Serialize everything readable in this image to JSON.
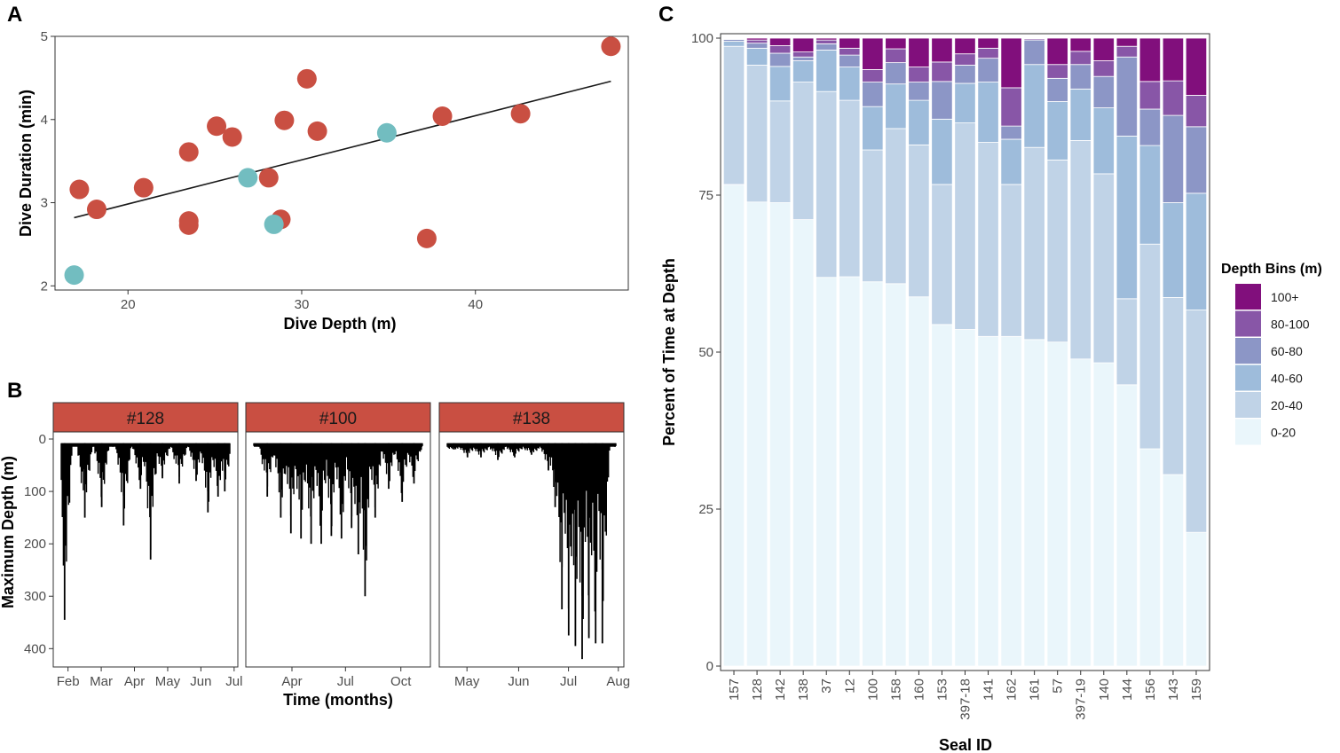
{
  "chart_data": [
    {
      "panel": "A",
      "type": "scatter",
      "xlabel": "Dive Depth (m)",
      "ylabel": "Dive Duration (min)",
      "xlim": [
        15.8,
        48.8
      ],
      "ylim": [
        1.95,
        5.0
      ],
      "xticks": [
        20,
        30,
        40
      ],
      "yticks": [
        2,
        3,
        4,
        5
      ],
      "colors": {
        "group1": "#c94f42",
        "group2": "#72bdc0",
        "line": "#1a1a1a"
      },
      "series": [
        {
          "name": "group1",
          "points": [
            [
              17.2,
              3.16
            ],
            [
              18.2,
              2.92
            ],
            [
              20.9,
              3.18
            ],
            [
              23.5,
              3.61
            ],
            [
              23.5,
              2.73
            ],
            [
              23.5,
              2.78
            ],
            [
              25.1,
              3.92
            ],
            [
              26.0,
              3.79
            ],
            [
              28.1,
              3.3
            ],
            [
              28.8,
              2.8
            ],
            [
              29.0,
              3.99
            ],
            [
              30.3,
              4.49
            ],
            [
              30.9,
              3.86
            ],
            [
              37.2,
              2.57
            ],
            [
              38.1,
              4.04
            ],
            [
              42.6,
              4.07
            ],
            [
              47.8,
              4.88
            ]
          ]
        },
        {
          "name": "group2",
          "points": [
            [
              16.9,
              2.13
            ],
            [
              26.9,
              3.3
            ],
            [
              28.4,
              2.74
            ],
            [
              34.9,
              3.84
            ]
          ]
        }
      ],
      "fit_line": {
        "x": [
          16.9,
          47.8
        ],
        "y": [
          2.82,
          4.46
        ]
      }
    },
    {
      "panel": "B",
      "type": "line",
      "xlabel": "Time (months)",
      "ylabel": "Maximum Depth (m)",
      "ylim": [
        0,
        435
      ],
      "yticks": [
        0,
        100,
        200,
        300,
        400
      ],
      "facets": [
        {
          "label": "#128",
          "tick_labels": [
            "Feb",
            "Mar",
            "Apr",
            "May",
            "Jun",
            "Jul"
          ],
          "spikes": [
            [
              0.02,
              345
            ],
            [
              0.14,
              150
            ],
            [
              0.24,
              130
            ],
            [
              0.37,
              165
            ],
            [
              0.47,
              95
            ],
            [
              0.53,
              230
            ],
            [
              0.6,
              75
            ],
            [
              0.7,
              85
            ],
            [
              0.8,
              80
            ],
            [
              0.87,
              140
            ],
            [
              0.93,
              110
            ],
            [
              0.97,
              100
            ]
          ]
        },
        {
          "label": "#100",
          "tick_labels": [
            "Apr",
            "Jul",
            "Oct"
          ],
          "spikes": [
            [
              0.08,
              110
            ],
            [
              0.16,
              150
            ],
            [
              0.22,
              180
            ],
            [
              0.28,
              190
            ],
            [
              0.34,
              200
            ],
            [
              0.4,
              200
            ],
            [
              0.46,
              185
            ],
            [
              0.52,
              190
            ],
            [
              0.58,
              170
            ],
            [
              0.62,
              220
            ],
            [
              0.66,
              300
            ],
            [
              0.72,
              150
            ],
            [
              0.8,
              95
            ],
            [
              0.88,
              120
            ],
            [
              0.95,
              85
            ]
          ]
        },
        {
          "label": "#138",
          "tick_labels": [
            "May",
            "Jun",
            "Jul",
            "Aug"
          ],
          "spikes": [
            [
              0.04,
              20
            ],
            [
              0.12,
              35
            ],
            [
              0.2,
              35
            ],
            [
              0.3,
              40
            ],
            [
              0.4,
              35
            ],
            [
              0.5,
              30
            ],
            [
              0.6,
              60
            ],
            [
              0.64,
              130
            ],
            [
              0.68,
              325
            ],
            [
              0.72,
              375
            ],
            [
              0.76,
              395
            ],
            [
              0.8,
              420
            ],
            [
              0.84,
              380
            ],
            [
              0.88,
              390
            ],
            [
              0.92,
              390
            ]
          ]
        }
      ]
    },
    {
      "panel": "C",
      "type": "bar",
      "stacked": true,
      "xlabel": "Seal ID",
      "ylabel": "Percent of Time at Depth",
      "ylim": [
        0,
        100
      ],
      "yticks": [
        0,
        25,
        50,
        75,
        100
      ],
      "legend_title": "Depth Bins (m)",
      "bins": [
        "0-20",
        "20-40",
        "40-60",
        "60-80",
        "80-100",
        "100+"
      ],
      "legend_order": [
        "100+",
        "80-100",
        "60-80",
        "40-60",
        "20-40",
        "0-20"
      ],
      "colors": {
        "0-20": "#eaf6fb",
        "20-40": "#c0d3e7",
        "40-60": "#9ebcdb",
        "60-80": "#8c96c6",
        "80-100": "#8856a7",
        "100+": "#810f7c"
      },
      "categories": [
        "157",
        "128",
        "142",
        "138",
        "37",
        "12",
        "100",
        "158",
        "160",
        "153",
        "397-18",
        "141",
        "162",
        "161",
        "57",
        "397-19",
        "140",
        "144",
        "156",
        "143",
        "159"
      ],
      "series": [
        {
          "name": "0-20",
          "values": [
            76.7,
            73.9,
            73.8,
            71.1,
            61.9,
            62.0,
            61.2,
            60.9,
            58.8,
            54.4,
            53.6,
            52.5,
            52.5,
            52.0,
            51.6,
            48.9,
            48.3,
            44.8,
            34.6,
            30.5,
            21.3
          ]
        },
        {
          "name": "20-40",
          "values": [
            22.0,
            21.8,
            16.2,
            21.9,
            29.6,
            28.1,
            21.0,
            24.7,
            24.2,
            22.3,
            32.9,
            30.9,
            24.2,
            30.6,
            29.0,
            34.8,
            30.1,
            13.7,
            32.6,
            28.2,
            35.4
          ]
        },
        {
          "name": "40-60",
          "values": [
            0.8,
            2.7,
            5.5,
            3.4,
            6.6,
            5.3,
            6.9,
            7.1,
            7.1,
            10.4,
            6.3,
            9.6,
            7.2,
            13.2,
            9.3,
            8.2,
            10.5,
            25.9,
            15.7,
            15.1,
            18.6
          ]
        },
        {
          "name": "60-80",
          "values": [
            0.3,
            0.8,
            2.1,
            0.6,
            1.0,
            1.9,
            3.9,
            3.4,
            2.9,
            6.0,
            2.9,
            3.8,
            2.1,
            3.9,
            3.7,
            3.9,
            5.0,
            12.6,
            5.8,
            13.9,
            10.6
          ]
        },
        {
          "name": "80-100",
          "values": [
            0.1,
            0.5,
            1.2,
            0.8,
            0.6,
            1.1,
            2.0,
            2.2,
            2.4,
            3.1,
            1.8,
            1.6,
            6.1,
            0.2,
            2.2,
            2.1,
            2.5,
            1.7,
            4.4,
            5.5,
            5.0
          ]
        },
        {
          "name": "100+",
          "values": [
            0.1,
            0.3,
            1.2,
            2.2,
            0.3,
            1.6,
            5.0,
            1.7,
            4.6,
            3.8,
            2.5,
            1.6,
            7.9,
            0.1,
            4.2,
            2.1,
            3.6,
            1.3,
            6.9,
            6.8,
            9.1
          ]
        }
      ]
    }
  ]
}
